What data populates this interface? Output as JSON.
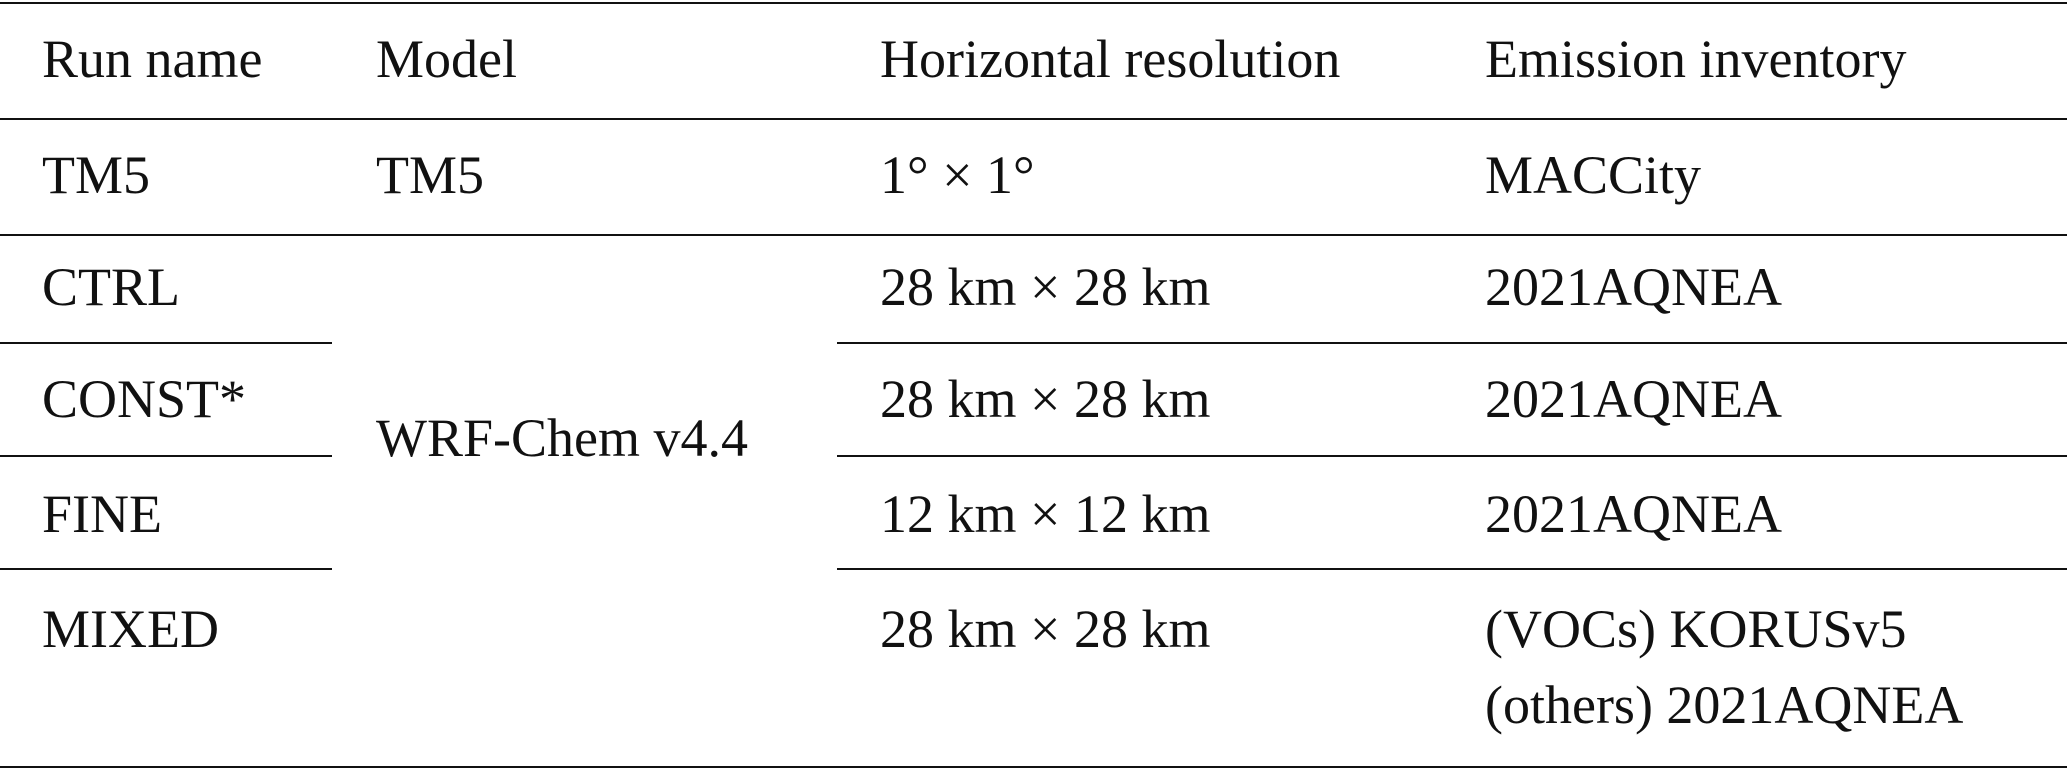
{
  "table": {
    "headers": [
      "Run name",
      "Model",
      "Horizontal resolution",
      "Emission inventory"
    ],
    "rows": [
      {
        "run": "TM5",
        "model": "TM5",
        "resolution": "1° × 1°",
        "inventory": [
          "MACCity"
        ]
      },
      {
        "run": "CTRL",
        "resolution": "28 km × 28 km",
        "inventory": [
          "2021AQNEA"
        ]
      },
      {
        "run": "CONST*",
        "resolution": "28 km × 28 km",
        "inventory": [
          "2021AQNEA"
        ]
      },
      {
        "run": "FINE",
        "resolution": "12 km × 12 km",
        "inventory": [
          "2021AQNEA"
        ]
      },
      {
        "run": "MIXED",
        "resolution": "28 km × 28 km",
        "inventory": [
          "(VOCs) KORUSv5",
          "(others) 2021AQNEA"
        ]
      }
    ],
    "merged_model": "WRF-Chem v4.4"
  }
}
